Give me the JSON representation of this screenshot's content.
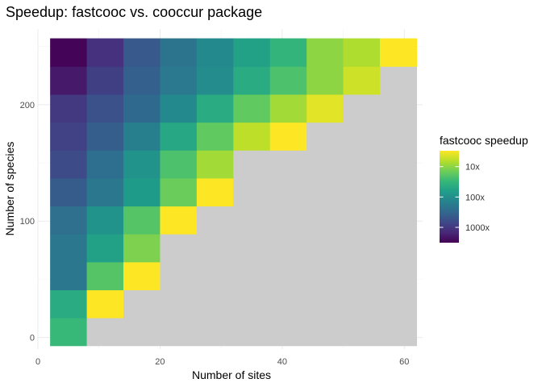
{
  "chart_data": {
    "type": "heatmap",
    "title": "Speedup: fastcooc vs. cooccur package",
    "xlabel": "Number of sites",
    "ylabel": "Number of species",
    "xlim": [
      0,
      63
    ],
    "ylim": [
      -10,
      265
    ],
    "x_ticks": [
      {
        "value": 0,
        "label": "0"
      },
      {
        "value": 20,
        "label": "20"
      },
      {
        "value": 40,
        "label": "40"
      },
      {
        "value": 60,
        "label": "60"
      }
    ],
    "y_ticks": [
      {
        "value": 0,
        "label": "0"
      },
      {
        "value": 100,
        "label": "100"
      },
      {
        "value": 200,
        "label": "200"
      }
    ],
    "x_categories": [
      5,
      11,
      17,
      23,
      29,
      35,
      41,
      47,
      53,
      59
    ],
    "y_categories": [
      5,
      29,
      53,
      77,
      101,
      125,
      149,
      173,
      197,
      221,
      245
    ],
    "cell_width": 6,
    "cell_height": 24,
    "missing_color": "#cccccc",
    "grid": true,
    "legend": {
      "title": "fastcooc speedup",
      "position": "right",
      "scale": "log10",
      "range": [
        3,
        3200
      ],
      "breaks": [
        {
          "value": 10,
          "label": "10x"
        },
        {
          "value": 100,
          "label": "100x"
        },
        {
          "value": 1000,
          "label": "1000x"
        }
      ]
    },
    "values": [
      [
        30,
        null,
        null,
        null,
        null,
        null,
        null,
        null,
        null,
        null
      ],
      [
        45,
        3,
        null,
        null,
        null,
        null,
        null,
        null,
        null,
        null
      ],
      [
        200,
        20,
        3,
        null,
        null,
        null,
        null,
        null,
        null,
        null
      ],
      [
        200,
        60,
        12,
        null,
        null,
        null,
        null,
        null,
        null,
        null
      ],
      [
        250,
        90,
        20,
        3,
        null,
        null,
        null,
        null,
        null,
        null
      ],
      [
        420,
        200,
        70,
        15,
        3,
        null,
        null,
        null,
        null,
        null
      ],
      [
        650,
        260,
        90,
        22,
        8,
        null,
        null,
        null,
        null,
        null
      ],
      [
        800,
        400,
        160,
        50,
        17,
        6,
        3,
        null,
        null,
        null
      ],
      [
        1000,
        560,
        300,
        120,
        45,
        17,
        8,
        4,
        null,
        null
      ],
      [
        2000,
        850,
        380,
        190,
        110,
        45,
        22,
        10,
        5,
        null
      ],
      [
        3000,
        1200,
        460,
        220,
        120,
        60,
        34,
        10,
        7,
        3
      ]
    ]
  }
}
